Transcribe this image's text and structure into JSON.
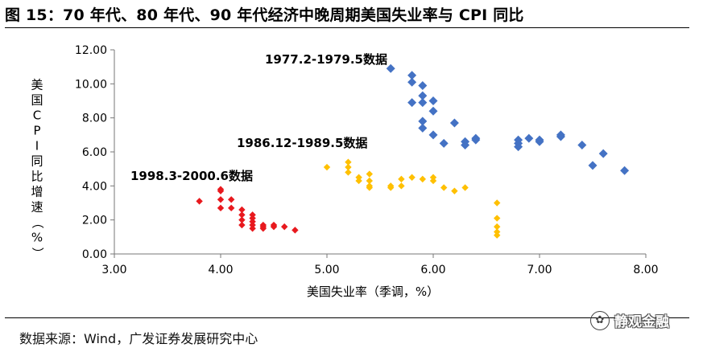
{
  "figure": {
    "title": "图 15：70 年代、80 年代、90 年代经济中晚周期美国失业率与 CPI 同比",
    "source": "数据来源：Wind，广发证券发展研究中心",
    "watermark": "静观金融",
    "watermark_icon": "wechat-icon"
  },
  "chart_data": {
    "type": "scatter",
    "xlabel": "美国失业率（季调，%）",
    "ylabel": "美国CPI同比增速（%）",
    "xlim": [
      3.0,
      8.0
    ],
    "ylim": [
      0.0,
      12.0
    ],
    "x_ticks": [
      "3.00",
      "4.00",
      "5.00",
      "6.00",
      "7.00",
      "8.00"
    ],
    "y_ticks": [
      "0.00",
      "2.00",
      "4.00",
      "6.00",
      "8.00",
      "10.00",
      "12.00"
    ],
    "grid": false,
    "series": [
      {
        "name": "1977.2-1979.5数据",
        "color": "#4472C4",
        "points": [
          [
            5.6,
            10.9
          ],
          [
            5.8,
            10.5
          ],
          [
            5.8,
            10.1
          ],
          [
            5.9,
            9.9
          ],
          [
            5.9,
            9.3
          ],
          [
            5.8,
            8.9
          ],
          [
            5.9,
            8.9
          ],
          [
            6.0,
            9.0
          ],
          [
            6.0,
            8.4
          ],
          [
            5.9,
            7.8
          ],
          [
            5.9,
            7.4
          ],
          [
            6.2,
            7.7
          ],
          [
            6.0,
            7.0
          ],
          [
            6.1,
            6.5
          ],
          [
            6.3,
            6.6
          ],
          [
            6.3,
            6.4
          ],
          [
            6.4,
            6.8
          ],
          [
            6.4,
            6.7
          ],
          [
            6.8,
            6.7
          ],
          [
            6.8,
            6.5
          ],
          [
            6.8,
            6.3
          ],
          [
            6.9,
            6.8
          ],
          [
            7.0,
            6.7
          ],
          [
            7.0,
            6.6
          ],
          [
            7.2,
            7.0
          ],
          [
            7.2,
            6.9
          ],
          [
            7.4,
            6.4
          ],
          [
            7.6,
            5.9
          ],
          [
            7.5,
            5.2
          ],
          [
            7.8,
            4.9
          ]
        ]
      },
      {
        "name": "1986.12-1989.5数据",
        "color": "#FFC000",
        "points": [
          [
            5.0,
            5.1
          ],
          [
            5.2,
            5.4
          ],
          [
            5.2,
            5.1
          ],
          [
            5.2,
            4.8
          ],
          [
            5.3,
            4.5
          ],
          [
            5.3,
            4.3
          ],
          [
            5.4,
            4.7
          ],
          [
            5.4,
            4.3
          ],
          [
            5.4,
            4.0
          ],
          [
            5.4,
            3.9
          ],
          [
            5.6,
            4.0
          ],
          [
            5.6,
            3.9
          ],
          [
            5.7,
            4.4
          ],
          [
            5.7,
            4.0
          ],
          [
            5.8,
            4.5
          ],
          [
            5.9,
            4.4
          ],
          [
            6.0,
            4.5
          ],
          [
            6.0,
            4.3
          ],
          [
            6.1,
            3.9
          ],
          [
            6.2,
            3.7
          ],
          [
            6.3,
            3.9
          ],
          [
            6.6,
            3.0
          ],
          [
            6.6,
            2.1
          ],
          [
            6.6,
            1.6
          ],
          [
            6.6,
            1.3
          ],
          [
            6.6,
            1.1
          ]
        ]
      },
      {
        "name": "1998.3-2000.6数据",
        "color": "#E8191E",
        "points": [
          [
            3.8,
            3.1
          ],
          [
            4.0,
            3.8
          ],
          [
            4.0,
            3.7
          ],
          [
            4.0,
            3.2
          ],
          [
            4.1,
            3.2
          ],
          [
            4.0,
            2.7
          ],
          [
            4.1,
            2.7
          ],
          [
            4.2,
            2.6
          ],
          [
            4.2,
            2.3
          ],
          [
            4.3,
            2.3
          ],
          [
            4.3,
            2.1
          ],
          [
            4.2,
            2.0
          ],
          [
            4.3,
            1.9
          ],
          [
            4.2,
            1.7
          ],
          [
            4.3,
            1.7
          ],
          [
            4.4,
            1.7
          ],
          [
            4.4,
            1.6
          ],
          [
            4.5,
            1.7
          ],
          [
            4.5,
            1.6
          ],
          [
            4.6,
            1.6
          ],
          [
            4.7,
            1.4
          ],
          [
            4.3,
            1.5
          ],
          [
            4.4,
            1.5
          ]
        ]
      }
    ]
  }
}
